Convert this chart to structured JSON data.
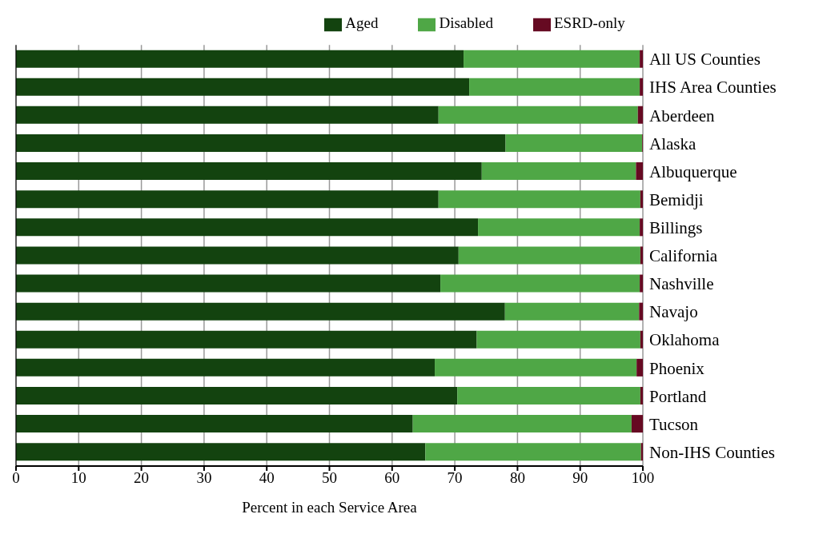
{
  "chart_data": {
    "type": "bar",
    "orientation": "horizontal",
    "stacked": true,
    "xlabel": "Percent in each Service Area",
    "categories": [
      "All US Counties",
      "IHS Area Counties",
      "Aberdeen",
      "Alaska",
      "Albuquerque",
      "Bemidji",
      "Billings",
      "California",
      "Nashville",
      "Navajo",
      "Oklahoma",
      "Phoenix",
      "Portland",
      "Tucson",
      "Non-IHS Counties"
    ],
    "series": [
      {
        "name": "Aged",
        "color": "#13430f",
        "values": [
          71.4,
          72.3,
          67.4,
          78.1,
          74.3,
          67.4,
          73.7,
          70.6,
          67.7,
          78.0,
          73.5,
          66.8,
          70.4,
          63.3,
          65.3
        ]
      },
      {
        "name": "Disabled",
        "color": "#4fa746",
        "values": [
          28.1,
          27.2,
          31.8,
          21.8,
          24.6,
          32.2,
          25.8,
          29.0,
          31.8,
          21.4,
          26.1,
          32.2,
          29.2,
          34.9,
          34.4
        ]
      },
      {
        "name": "ESRD-only",
        "color": "#660a22",
        "values": [
          0.5,
          0.5,
          0.8,
          0.1,
          1.1,
          0.4,
          0.5,
          0.4,
          0.5,
          0.6,
          0.4,
          1.0,
          0.4,
          1.8,
          0.3
        ]
      }
    ],
    "xlim": [
      0,
      100
    ],
    "xticks": [
      0,
      10,
      20,
      30,
      40,
      50,
      60,
      70,
      80,
      90,
      100
    ],
    "grid": "x",
    "legend": "top"
  }
}
